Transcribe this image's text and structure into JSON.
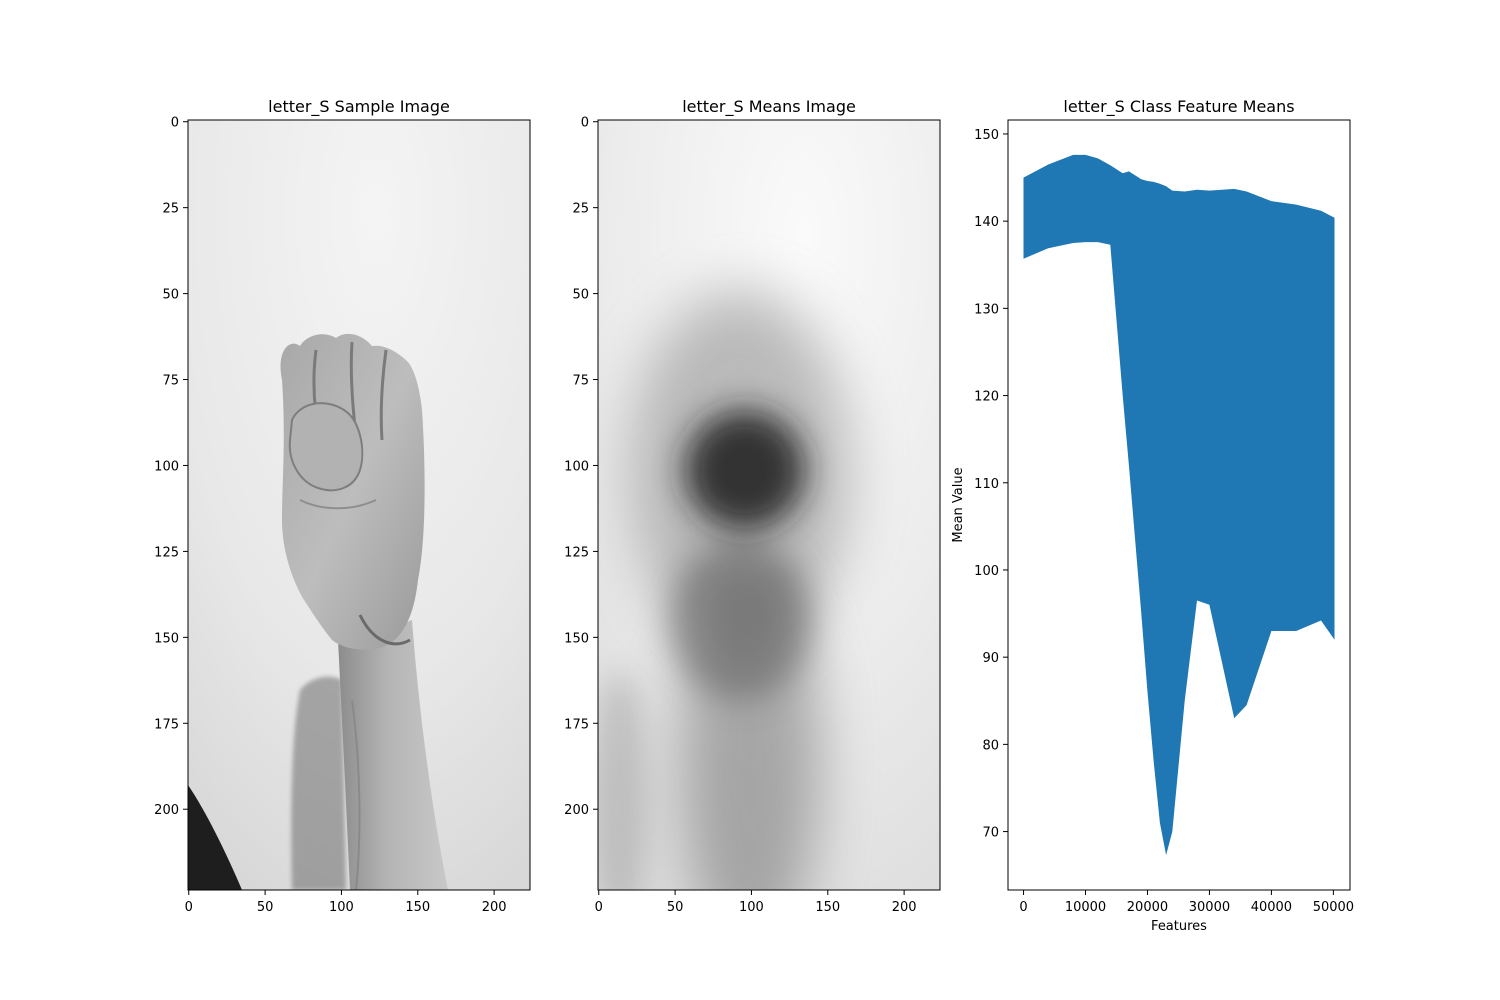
{
  "chart_data": [
    {
      "type": "image",
      "title": "letter_S Sample Image",
      "xlabel": "",
      "ylabel": "",
      "colormap": "gray",
      "xlim": [
        -0.5,
        223.5
      ],
      "ylim": [
        223.5,
        -0.5
      ],
      "xticks": [
        0,
        50,
        100,
        150,
        200
      ],
      "yticks": [
        0,
        25,
        50,
        75,
        100,
        125,
        150,
        175,
        200
      ],
      "content": "grayscale photo of a closed fist (sign-language letter S) with forearm, light grey background"
    },
    {
      "type": "image",
      "title": "letter_S Means Image",
      "xlabel": "",
      "ylabel": "",
      "colormap": "gray",
      "xlim": [
        -0.5,
        223.5
      ],
      "ylim": [
        223.5,
        -0.5
      ],
      "xticks": [
        0,
        50,
        100,
        150,
        200
      ],
      "yticks": [
        0,
        25,
        50,
        75,
        100,
        125,
        150,
        175,
        200
      ],
      "content": "blurred average of class images; dark blob centred near (100, 103), darker forearm region below"
    },
    {
      "type": "area",
      "title": "letter_S Class Feature Means",
      "xlabel": "Features",
      "ylabel": "Mean Value",
      "xlim": [
        -2509,
        52684
      ],
      "ylim": [
        63.3,
        151.6
      ],
      "xticks": [
        0,
        10000,
        20000,
        30000,
        40000,
        50000
      ],
      "yticks": [
        70,
        80,
        90,
        100,
        110,
        120,
        130,
        140,
        150
      ],
      "color": "#1f77b4",
      "series": [
        {
          "x": [
            0,
            4000,
            8000,
            10000,
            12000,
            14000,
            16000,
            17000,
            19000,
            20000,
            21000,
            22000,
            23000,
            24000,
            26000,
            28000,
            30000,
            34000,
            36000,
            40000,
            44000,
            48000,
            50176
          ],
          "upper": [
            145.0,
            146.5,
            147.6,
            147.6,
            147.2,
            146.4,
            145.5,
            145.7,
            144.8,
            144.6,
            144.5,
            144.3,
            144.0,
            143.5,
            143.4,
            143.6,
            143.5,
            143.7,
            143.4,
            142.3,
            141.9,
            141.2,
            140.4
          ],
          "lower": [
            135.7,
            136.9,
            137.5,
            137.6,
            137.6,
            137.3,
            120.0,
            112.0,
            95.0,
            86.0,
            78.0,
            71.0,
            67.3,
            70.0,
            85.0,
            96.5,
            96.0,
            83.0,
            84.5,
            93.0,
            93.0,
            94.2,
            92.0
          ]
        }
      ]
    }
  ]
}
